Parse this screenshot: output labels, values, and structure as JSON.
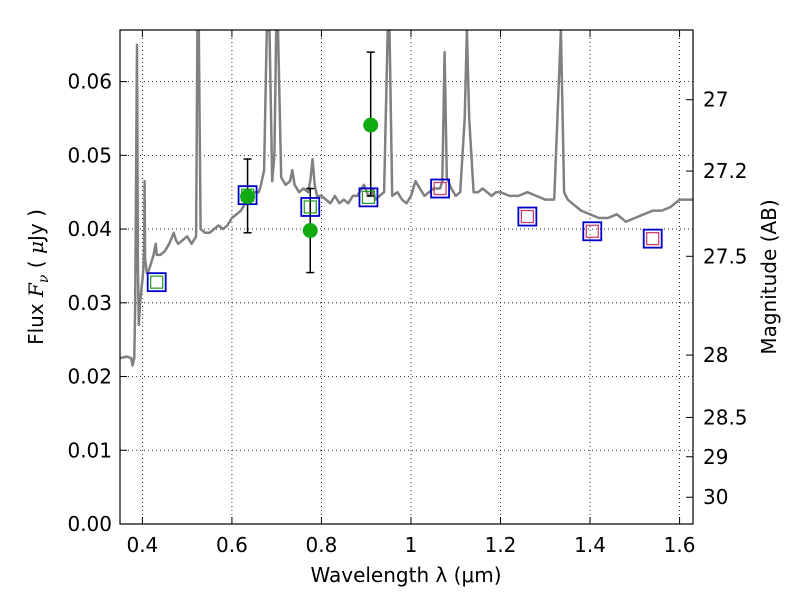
{
  "chart_data": {
    "type": "scatter",
    "xlabel": "Wavelength  λ (μm)",
    "ylabel_parts": [
      "Flux  ",
      "F",
      "ν",
      "  ( ",
      "μ",
      "Jy )"
    ],
    "ylabel_right": "Magnitude (AB)",
    "xlim": [
      0.35,
      1.63
    ],
    "ylim": [
      0.0,
      0.067
    ],
    "grid": true,
    "x_ticks": [
      0.4,
      0.6,
      0.8,
      1.0,
      1.2,
      1.4,
      1.6
    ],
    "x_tick_labels": [
      "0.4",
      "0.6",
      "0.8",
      "1",
      "1.2",
      "1.4",
      "1.6"
    ],
    "y_ticks": [
      0.0,
      0.01,
      0.02,
      0.03,
      0.04,
      0.05,
      0.06
    ],
    "y_tick_labels": [
      "0.00",
      "0.01",
      "0.02",
      "0.03",
      "0.04",
      "0.05",
      "0.06"
    ],
    "right_ticks": [
      27.0,
      27.2,
      27.5,
      28.0,
      28.5,
      29.0,
      30.0
    ],
    "right_tick_labels": [
      "27",
      "27.2",
      "27.5",
      "28",
      "28.5",
      "29",
      "30"
    ],
    "series": [
      {
        "kind": "template-spectrum",
        "color": "#808080",
        "points": [
          [
            0.35,
            0.0225
          ],
          [
            0.365,
            0.0227
          ],
          [
            0.375,
            0.0225
          ],
          [
            0.378,
            0.0215
          ],
          [
            0.382,
            0.0225
          ],
          [
            0.384,
            0.03
          ],
          [
            0.386,
            0.0475
          ],
          [
            0.388,
            0.065
          ],
          [
            0.39,
            0.035
          ],
          [
            0.392,
            0.027
          ],
          [
            0.395,
            0.03
          ],
          [
            0.398,
            0.032
          ],
          [
            0.4,
            0.033
          ],
          [
            0.402,
            0.0345
          ],
          [
            0.404,
            0.0375
          ],
          [
            0.405,
            0.0465
          ],
          [
            0.406,
            0.036
          ],
          [
            0.41,
            0.034
          ],
          [
            0.415,
            0.0345
          ],
          [
            0.42,
            0.0355
          ],
          [
            0.425,
            0.0365
          ],
          [
            0.428,
            0.0375
          ],
          [
            0.43,
            0.038
          ],
          [
            0.432,
            0.0365
          ],
          [
            0.44,
            0.0365
          ],
          [
            0.45,
            0.037
          ],
          [
            0.46,
            0.038
          ],
          [
            0.47,
            0.0395
          ],
          [
            0.475,
            0.0385
          ],
          [
            0.48,
            0.038
          ],
          [
            0.49,
            0.0385
          ],
          [
            0.5,
            0.039
          ],
          [
            0.51,
            0.038
          ],
          [
            0.52,
            0.039
          ],
          [
            0.523,
            0.067
          ],
          [
            0.526,
            0.067
          ],
          [
            0.53,
            0.04
          ],
          [
            0.54,
            0.0395
          ],
          [
            0.55,
            0.0395
          ],
          [
            0.56,
            0.04
          ],
          [
            0.57,
            0.0405
          ],
          [
            0.58,
            0.04
          ],
          [
            0.59,
            0.0405
          ],
          [
            0.6,
            0.0415
          ],
          [
            0.61,
            0.042
          ],
          [
            0.62,
            0.0425
          ],
          [
            0.63,
            0.0435
          ],
          [
            0.64,
            0.044
          ],
          [
            0.65,
            0.045
          ],
          [
            0.66,
            0.045
          ],
          [
            0.665,
            0.046
          ],
          [
            0.672,
            0.048
          ],
          [
            0.678,
            0.067
          ],
          [
            0.684,
            0.067
          ],
          [
            0.69,
            0.0465
          ],
          [
            0.695,
            0.05
          ],
          [
            0.699,
            0.067
          ],
          [
            0.703,
            0.067
          ],
          [
            0.71,
            0.047
          ],
          [
            0.72,
            0.046
          ],
          [
            0.73,
            0.0465
          ],
          [
            0.735,
            0.048
          ],
          [
            0.74,
            0.046
          ],
          [
            0.75,
            0.045
          ],
          [
            0.76,
            0.0455
          ],
          [
            0.77,
            0.045
          ],
          [
            0.775,
            0.0465
          ],
          [
            0.78,
            0.0495
          ],
          [
            0.785,
            0.046
          ],
          [
            0.79,
            0.0445
          ],
          [
            0.8,
            0.0445
          ],
          [
            0.81,
            0.044
          ],
          [
            0.82,
            0.0435
          ],
          [
            0.83,
            0.0445
          ],
          [
            0.84,
            0.0435
          ],
          [
            0.85,
            0.044
          ],
          [
            0.86,
            0.0435
          ],
          [
            0.87,
            0.0445
          ],
          [
            0.88,
            0.0445
          ],
          [
            0.895,
            0.046
          ],
          [
            0.905,
            0.0445
          ],
          [
            0.91,
            0.0445
          ],
          [
            0.915,
            0.0455
          ],
          [
            0.92,
            0.044
          ],
          [
            0.93,
            0.0445
          ],
          [
            0.94,
            0.045
          ],
          [
            0.948,
            0.067
          ],
          [
            0.952,
            0.067
          ],
          [
            0.958,
            0.0445
          ],
          [
            0.97,
            0.045
          ],
          [
            0.98,
            0.044
          ],
          [
            0.99,
            0.0435
          ],
          [
            1.0,
            0.0445
          ],
          [
            1.01,
            0.0465
          ],
          [
            1.02,
            0.0455
          ],
          [
            1.03,
            0.0445
          ],
          [
            1.04,
            0.045
          ],
          [
            1.05,
            0.0455
          ],
          [
            1.06,
            0.0455
          ],
          [
            1.065,
            0.0455
          ],
          [
            1.07,
            0.0465
          ],
          [
            1.075,
            0.064
          ],
          [
            1.08,
            0.047
          ],
          [
            1.09,
            0.0455
          ],
          [
            1.1,
            0.0445
          ],
          [
            1.11,
            0.045
          ],
          [
            1.12,
            0.055
          ],
          [
            1.125,
            0.067
          ],
          [
            1.13,
            0.055
          ],
          [
            1.14,
            0.045
          ],
          [
            1.15,
            0.045
          ],
          [
            1.16,
            0.0455
          ],
          [
            1.17,
            0.045
          ],
          [
            1.18,
            0.0445
          ],
          [
            1.19,
            0.045
          ],
          [
            1.2,
            0.045
          ],
          [
            1.22,
            0.0445
          ],
          [
            1.24,
            0.0445
          ],
          [
            1.26,
            0.045
          ],
          [
            1.28,
            0.0445
          ],
          [
            1.3,
            0.044
          ],
          [
            1.32,
            0.044
          ],
          [
            1.335,
            0.067
          ],
          [
            1.342,
            0.045
          ],
          [
            1.35,
            0.044
          ],
          [
            1.36,
            0.0435
          ],
          [
            1.38,
            0.0425
          ],
          [
            1.4,
            0.042
          ],
          [
            1.42,
            0.0415
          ],
          [
            1.44,
            0.0415
          ],
          [
            1.46,
            0.042
          ],
          [
            1.48,
            0.041
          ],
          [
            1.5,
            0.0415
          ],
          [
            1.52,
            0.042
          ],
          [
            1.54,
            0.0425
          ],
          [
            1.56,
            0.0425
          ],
          [
            1.58,
            0.043
          ],
          [
            1.6,
            0.044
          ],
          [
            1.62,
            0.044
          ],
          [
            1.63,
            0.044
          ]
        ]
      },
      {
        "kind": "template-photometry",
        "marker": "open-square",
        "color": "#0000cc",
        "x": [
          0.432,
          0.635,
          0.775,
          0.905,
          1.065,
          1.26,
          1.405,
          1.54
        ],
        "y": [
          0.0328,
          0.0446,
          0.043,
          0.0443,
          0.0455,
          0.0417,
          0.0397,
          0.0387
        ]
      },
      {
        "kind": "model-photometry",
        "marker": "small-open-square",
        "colors": [
          "#229922",
          "#229922",
          "#229922",
          "#229922",
          "#cc3366",
          "#cc3366",
          "#cc3366",
          "#cc3366"
        ],
        "x": [
          0.432,
          0.635,
          0.775,
          0.905,
          1.065,
          1.26,
          1.405,
          1.54
        ],
        "y": [
          0.0328,
          0.0446,
          0.043,
          0.0443,
          0.0455,
          0.0417,
          0.0397,
          0.0387
        ]
      },
      {
        "kind": "observed",
        "marker": "filled-circle",
        "color": "#11aa11",
        "x": [
          0.635,
          0.775,
          0.91
        ],
        "y": [
          0.0444,
          0.0398,
          0.0541
        ],
        "yerr_low": [
          0.0395,
          0.0341,
          0.0445
        ],
        "yerr_high": [
          0.0495,
          0.0455,
          0.064
        ]
      }
    ]
  }
}
